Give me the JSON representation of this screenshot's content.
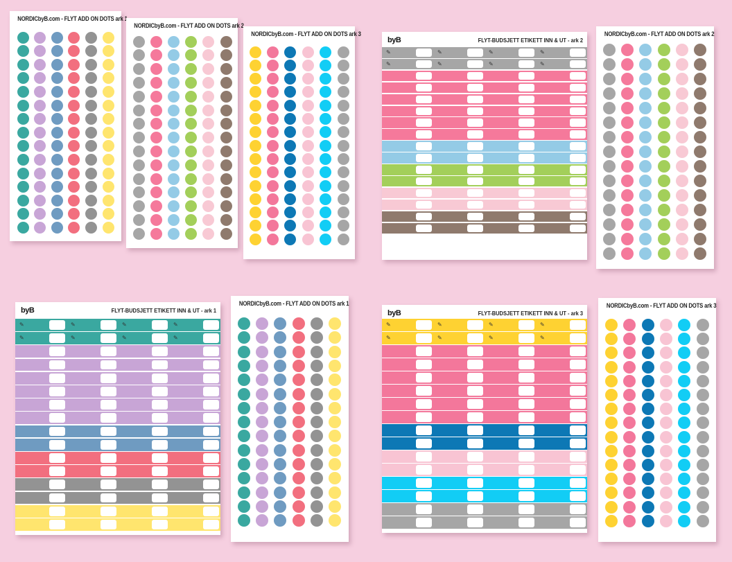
{
  "palettes": {
    "ark1": [
      "#3aa8a0",
      "#c8a5d6",
      "#6f9bc1",
      "#f26f7f",
      "#939393",
      "#ffe56e"
    ],
    "ark2": [
      "#a6a6a6",
      "#f5799b",
      "#94cbe6",
      "#a3cf5a",
      "#f8c9d4",
      "#8f7a6d"
    ],
    "ark3": [
      "#fed232",
      "#f3779b",
      "#0d78b5",
      "#f8c4d3",
      "#12cdf5",
      "#a6a6a6"
    ]
  },
  "sheets": {
    "dots_ark1_top": {
      "title": "NORDICbyB.com - FLYT ADD ON DOTS ark 1"
    },
    "dots_ark2_top": {
      "title": "NORDICbyB.com - FLYT ADD ON DOTS ark 2"
    },
    "dots_ark3_top": {
      "title": "NORDICbyB.com - FLYT ADD ON DOTS ark 3"
    },
    "dots_ark2_right": {
      "title": "NORDICbyB.com - FLYT ADD ON DOTS ark 2"
    },
    "dots_ark1_bottom": {
      "title": "NORDICbyB.com - FLYT ADD ON DOTS ark 1"
    },
    "dots_ark3_bottom": {
      "title": "NORDICbyB.com - FLYT ADD ON DOTS ark 3"
    },
    "etikett_ark2": {
      "logo": "byB",
      "title": "FLYT-BUDSJETT ETIKETT INN & UT - ark 2",
      "strips": [
        "#a6a6a6",
        "#f5799b",
        "#94cbe6",
        "#a3cf5a",
        "#f8c9d4",
        "#8f7a6d"
      ]
    },
    "etikett_ark1": {
      "logo": "byB",
      "title": "FLYT-BUDSJETT ETIKETT INN & UT - ark 1",
      "strips": [
        "#3aa8a0",
        "#c8a5d6",
        "#6f9bc1",
        "#f26f7f",
        "#939393",
        "#ffe56e"
      ]
    },
    "etikett_ark3": {
      "logo": "byB",
      "title": "FLYT-BUDSJETT ETIKETT INN & UT - ark 3",
      "strips": [
        "#fed232",
        "#f3779b",
        "#0d78b5",
        "#f8c4d3",
        "#12cdf5",
        "#a6a6a6"
      ]
    }
  }
}
